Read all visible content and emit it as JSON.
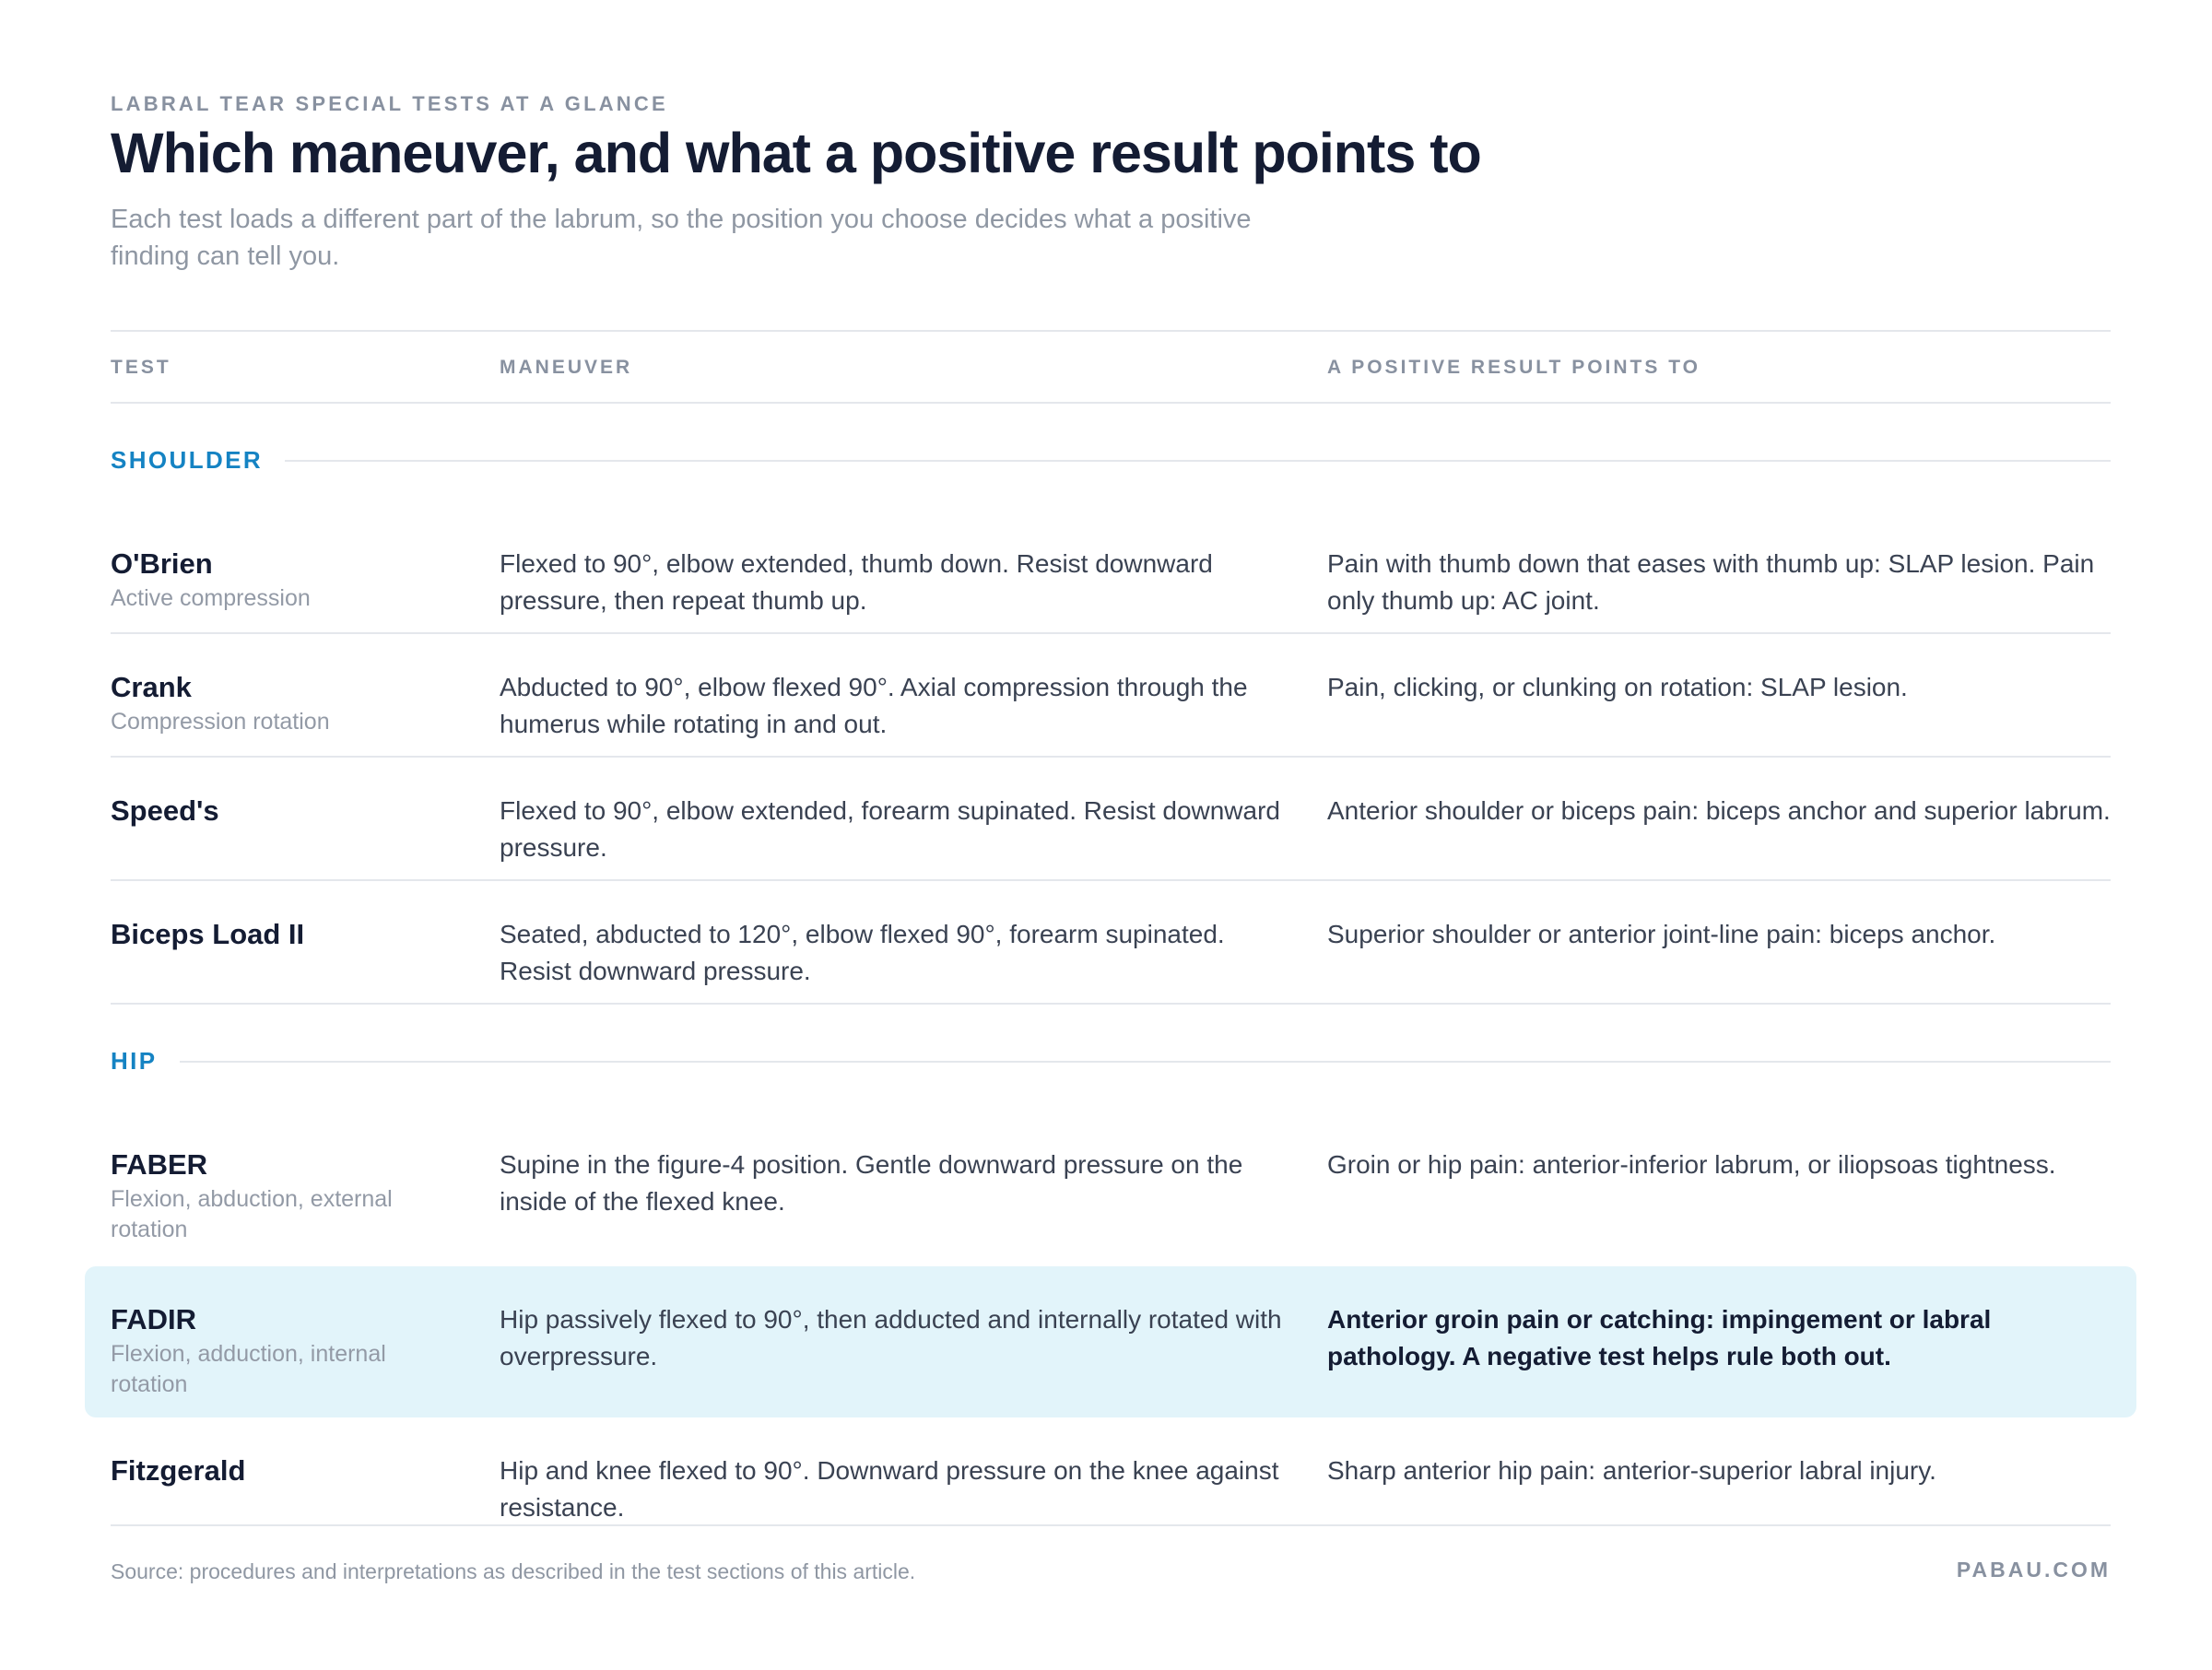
{
  "header": {
    "eyebrow": "LABRAL TEAR SPECIAL TESTS AT A GLANCE",
    "title": "Which maneuver, and what a positive result points to",
    "subtitle": "Each test loads a different part of the labrum, so the position you choose decides what a positive finding can tell you."
  },
  "table": {
    "columns": [
      "TEST",
      "MANEUVER",
      "A POSITIVE RESULT POINTS TO"
    ],
    "sections": [
      {
        "label": "SHOULDER",
        "rows": [
          {
            "name": "O'Brien",
            "sub": "Active compression",
            "maneuver": "Flexed to 90°, elbow extended, thumb down. Resist downward pressure, then repeat thumb up.",
            "result": "Pain with thumb down that eases with thumb up: SLAP lesion. Pain only thumb up: AC joint."
          },
          {
            "name": "Crank",
            "sub": "Compression rotation",
            "maneuver": "Abducted to 90°, elbow flexed 90°. Axial compression through the humerus while rotating in and out.",
            "result": "Pain, clicking, or clunking on rotation: SLAP lesion."
          },
          {
            "name": "Speed's",
            "sub": "",
            "maneuver": "Flexed to 90°, elbow extended, forearm supinated. Resist downward pressure.",
            "result": "Anterior shoulder or biceps pain: biceps anchor and superior labrum."
          },
          {
            "name": "Biceps Load II",
            "sub": "",
            "maneuver": "Seated, abducted to 120°, elbow flexed 90°, forearm supinated. Resist downward pressure.",
            "result": "Superior shoulder or anterior joint-line pain: biceps anchor."
          }
        ]
      },
      {
        "label": "HIP",
        "rows": [
          {
            "name": "FABER",
            "sub": "Flexion, abduction, external rotation",
            "maneuver": "Supine in the figure-4 position. Gentle downward pressure on the inside of the flexed knee.",
            "result": "Groin or hip pain: anterior-inferior labrum, or iliopsoas tightness."
          },
          {
            "name": "FADIR",
            "sub": "Flexion, adduction, internal rotation",
            "maneuver": "Hip passively flexed to 90°, then adducted and internally rotated with overpressure.",
            "result": "Anterior groin pain or catching: impingement or labral pathology. A negative test helps rule both out.",
            "highlighted": true
          },
          {
            "name": "Fitzgerald",
            "sub": "",
            "maneuver": "Hip and knee flexed to 90°. Downward pressure on the knee against resistance.",
            "result": "Sharp anterior hip pain: anterior-superior labral injury."
          }
        ]
      }
    ]
  },
  "footer": {
    "source": "Source: procedures and interpretations as described in the test sections of this article.",
    "brand": "PABAU.COM"
  },
  "colors": {
    "accent": "#1583c3",
    "highlight_bg": "#e2f4fa",
    "title": "#141c33",
    "muted": "#8891a0"
  }
}
